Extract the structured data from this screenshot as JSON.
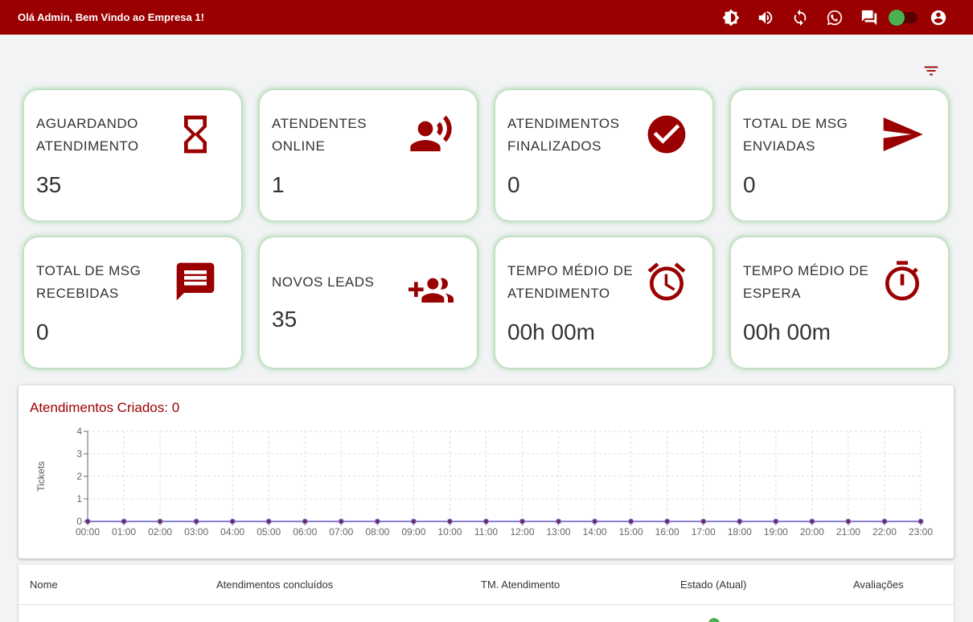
{
  "header": {
    "welcome": "Olá Admin, Bem Vindo ao Empresa 1!",
    "icons": [
      "brightness-icon",
      "volume-icon",
      "refresh-icon",
      "whatsapp-icon",
      "chat-icon",
      "toggle-switch",
      "account-icon"
    ],
    "bg_color": "#9b0000"
  },
  "filter_icon": "filter-icon",
  "cards": [
    {
      "label": "AGUARDANDO ATENDIMENTO",
      "value": "35",
      "icon": "hourglass-icon"
    },
    {
      "label": "ATENDENTES ONLINE",
      "value": "1",
      "icon": "record-voice-icon"
    },
    {
      "label": "ATENDIMENTOS FINALIZADOS",
      "value": "0",
      "icon": "check-circle-icon"
    },
    {
      "label": "TOTAL DE MSG ENVIADAS",
      "value": "0",
      "icon": "send-icon"
    },
    {
      "label": "TOTAL DE MSG RECEBIDAS",
      "value": "0",
      "icon": "message-icon"
    },
    {
      "label": "NOVOS LEADS",
      "value": "35",
      "icon": "group-add-icon"
    },
    {
      "label": "TEMPO MÉDIO DE ATENDIMENTO",
      "value": "00h 00m",
      "icon": "alarm-icon"
    },
    {
      "label": "TEMPO MÉDIO DE ESPERA",
      "value": "00h 00m",
      "icon": "timer-icon"
    }
  ],
  "chart": {
    "title": "Atendimentos Criados: 0"
  },
  "chart_data": {
    "type": "line",
    "title": "Atendimentos Criados: 0",
    "xlabel": "",
    "ylabel": "Tickets",
    "x": [
      "00:00",
      "01:00",
      "02:00",
      "03:00",
      "04:00",
      "05:00",
      "06:00",
      "07:00",
      "08:00",
      "09:00",
      "10:00",
      "11:00",
      "12:00",
      "13:00",
      "14:00",
      "15:00",
      "16:00",
      "17:00",
      "18:00",
      "19:00",
      "20:00",
      "21:00",
      "22:00",
      "23:00"
    ],
    "series": [
      {
        "values": [
          0,
          0,
          0,
          0,
          0,
          0,
          0,
          0,
          0,
          0,
          0,
          0,
          0,
          0,
          0,
          0,
          0,
          0,
          0,
          0,
          0,
          0,
          0,
          0
        ]
      }
    ],
    "y_ticks": [
      "0",
      "1",
      "2",
      "3",
      "4"
    ],
    "ylim": [
      0,
      4
    ],
    "grid": true,
    "line_color": "#8a7fd0",
    "point_color": "#6a2a6a"
  },
  "table": {
    "headers": [
      "Nome",
      "Atendimentos concluídos",
      "TM. Atendimento",
      "Estado (Atual)",
      "Avaliações"
    ]
  }
}
